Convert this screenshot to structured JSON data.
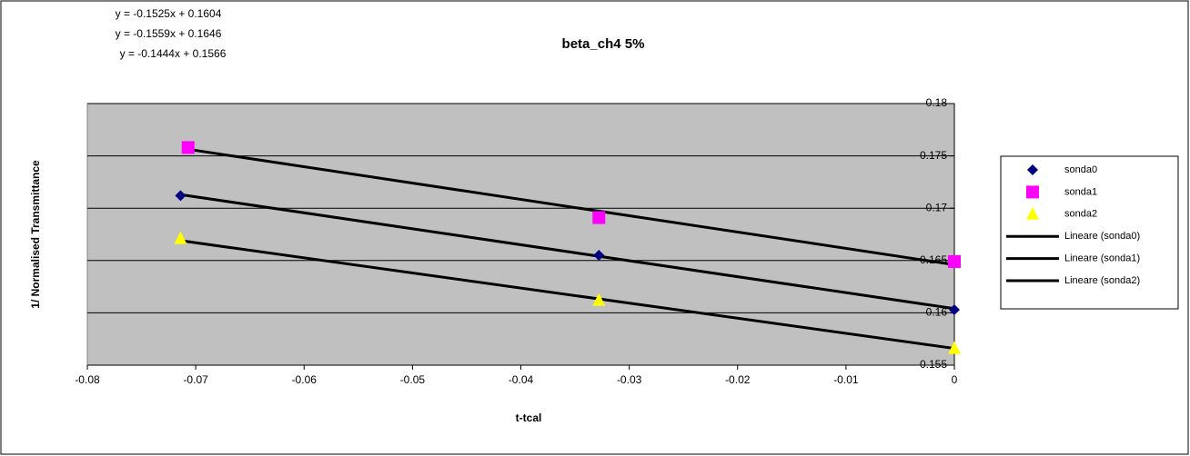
{
  "chart_data": {
    "type": "scatter",
    "title": "beta_ch4 5%",
    "annotations": [
      "y = -0.1525x + 0.1604",
      "y = -0.1559x + 0.1646",
      "y = -0.1444x + 0.1566"
    ],
    "x_label": "t-tcal",
    "y_label": "1/ Normalised Transmittance",
    "xlim": [
      -0.08,
      0
    ],
    "xticks": [
      -0.08,
      -0.07,
      -0.06,
      -0.05,
      -0.04,
      -0.03,
      -0.02,
      -0.01,
      0
    ],
    "ylim": [
      0.155,
      0.18
    ],
    "yticks": [
      0.155,
      0.16,
      0.165,
      0.17,
      0.175,
      0.18
    ],
    "grid": true,
    "legend": "right",
    "series": [
      {
        "name": "sonda0",
        "color": "#000080",
        "marker": "diamond",
        "x": [
          -0.0714,
          -0.0328,
          0
        ],
        "values": [
          0.1712,
          0.1655,
          0.1603
        ]
      },
      {
        "name": "sonda1",
        "color": "#ff00ff",
        "marker": "square",
        "x": [
          -0.0707,
          -0.0328,
          0
        ],
        "values": [
          0.1758,
          0.1691,
          0.1649
        ]
      },
      {
        "name": "sonda2",
        "color": "#ffff00",
        "marker": "triangle",
        "x": [
          -0.0714,
          -0.0328,
          0
        ],
        "values": [
          0.1671,
          0.1612,
          0.1566
        ]
      },
      {
        "name": "Lineare (sonda0)",
        "color": "#000000",
        "marker": "line",
        "x": [
          -0.0714,
          0
        ],
        "values": [
          0.1713,
          0.1604
        ]
      },
      {
        "name": "Lineare (sonda1)",
        "color": "#000000",
        "marker": "line",
        "x": [
          -0.0705,
          0
        ],
        "values": [
          0.1756,
          0.1646
        ]
      },
      {
        "name": "Lineare (sonda2)",
        "color": "#000000",
        "marker": "line",
        "x": [
          -0.0714,
          0
        ],
        "values": [
          0.1669,
          0.1566
        ]
      }
    ]
  }
}
